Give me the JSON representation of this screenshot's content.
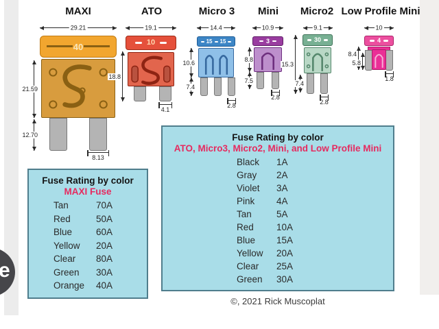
{
  "page": {
    "copyright": "©, 2021 Rick Muscoplat",
    "badge_letter": "e"
  },
  "colors": {
    "table_bg": "#a9dde8",
    "table_border": "#4f7d8c",
    "accent_pink": "#e62a5f",
    "dim_line": "#2a2a2a",
    "leg": "#b4b4b4",
    "leg_border": "#777777"
  },
  "fuses": [
    {
      "label": "MAXI",
      "amp": "40",
      "dims": {
        "width": "29.21",
        "body": "21.59",
        "legs": "12.70",
        "leg_w": "8.13",
        "height": "18.8"
      },
      "colors": {
        "cap": "#f2a62f",
        "cap_border": "#c07a12",
        "amp": "#f8e7bd",
        "body": "#d89c3e",
        "body_border": "#8a6013"
      }
    },
    {
      "label": "ATO",
      "amp": "10",
      "dims": {
        "width": "19.1",
        "leg_w": "4.1"
      },
      "colors": {
        "cap": "#e5503b",
        "cap_border": "#9c2a16",
        "amp": "#ffd9b0",
        "body": "#e2654d",
        "body_border": "#8e2413"
      }
    },
    {
      "label": "Micro 3",
      "amp": "15",
      "amp2": "15",
      "dims": {
        "width": "14.4",
        "body": "10.6",
        "legs": "7.4",
        "leg_w": "2.8"
      },
      "colors": {
        "cap": "#3d86c6",
        "cap_border": "#1c5b96",
        "amp": "#ffffff",
        "body": "#8fc0e8",
        "body_border": "#36689e"
      }
    },
    {
      "label": "Mini",
      "amp": "3",
      "dims": {
        "width": "10.9",
        "body": "8.8",
        "legs": "7.5",
        "leg_w": "2.8"
      },
      "colors": {
        "cap": "#9a3da0",
        "cap_border": "#5f1c66",
        "amp": "#ffffff",
        "body": "#bd8fcc",
        "body_border": "#6e2f7e"
      }
    },
    {
      "label": "Micro2",
      "amp": "30",
      "dims": {
        "width": "9.1",
        "height": "15.3",
        "legs": "7.4",
        "leg_w": "2.8"
      },
      "colors": {
        "cap": "#78b093",
        "cap_border": "#3f7258",
        "amp": "#ffffff",
        "body": "#b9d8c6",
        "body_border": "#55876c"
      }
    },
    {
      "label": "Low Profile Mini",
      "amp": "4",
      "dims": {
        "width": "10",
        "height": "8.4",
        "inner": "5.8",
        "leg_w": "1.8"
      },
      "colors": {
        "cap": "#ec4f9f",
        "cap_border": "#aa1f68",
        "amp": "#ffffff",
        "body": "#ea2f96",
        "body_border": "#aa1f68"
      }
    }
  ],
  "tables": [
    {
      "title": "Fuse Rating by color",
      "subtitle": "MAXI Fuse",
      "rows": [
        [
          "Tan",
          "70A"
        ],
        [
          "Red",
          "50A"
        ],
        [
          "Blue",
          "60A"
        ],
        [
          "Yellow",
          "20A"
        ],
        [
          "Clear",
          "80A"
        ],
        [
          "Green",
          "30A"
        ],
        [
          "Orange",
          "40A"
        ]
      ]
    },
    {
      "title": "Fuse Rating by color",
      "subtitle": "ATO, Micro3, Micro2, Mini, and Low Profile Mini",
      "rows": [
        [
          "Black",
          "1A"
        ],
        [
          "Gray",
          "2A"
        ],
        [
          "Violet",
          "3A"
        ],
        [
          "Pink",
          "4A"
        ],
        [
          "Tan",
          "5A"
        ],
        [
          "Red",
          "10A"
        ],
        [
          "Blue",
          "15A"
        ],
        [
          "Yellow",
          "20A"
        ],
        [
          "Clear",
          "25A"
        ],
        [
          "Green",
          "30A"
        ]
      ]
    }
  ]
}
